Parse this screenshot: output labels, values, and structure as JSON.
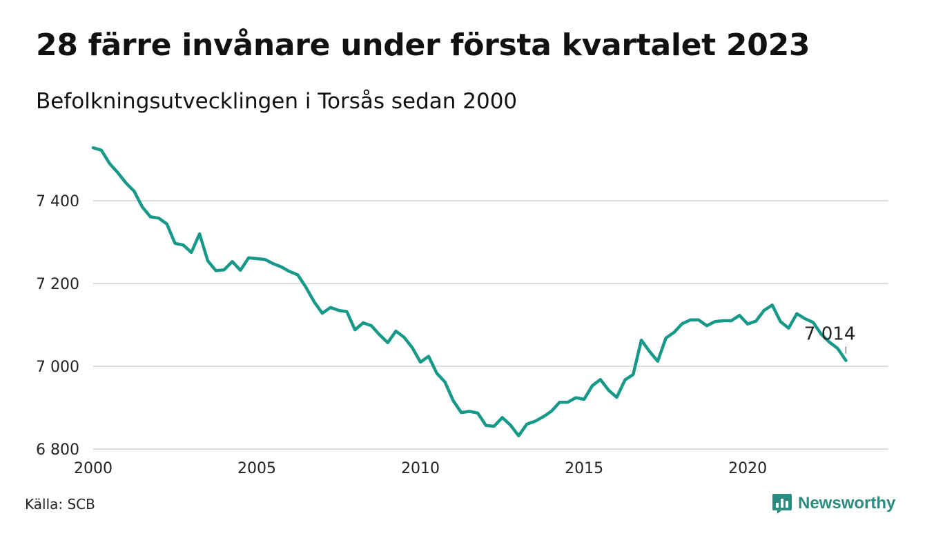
{
  "header": {
    "title": "28 färre invånare under första kvartalet 2023",
    "subtitle": "Befolkningsutvecklingen i Torsås sedan 2000"
  },
  "footer": {
    "source": "Källa: SCB",
    "brand": "Newsworthy"
  },
  "colors": {
    "line": "#17998a",
    "grid": "#dddddd",
    "brand": "#2a8c7e"
  },
  "chart_data": {
    "type": "line",
    "title": "28 färre invånare under första kvartalet 2023",
    "subtitle": "Befolkningsutvecklingen i Torsås sedan 2000",
    "xlabel": "",
    "ylabel": "",
    "xlim": [
      2000,
      2024.3
    ],
    "ylim": [
      6800,
      7540
    ],
    "x_ticks": [
      2000,
      2005,
      2010,
      2015,
      2020
    ],
    "x_tick_labels": [
      "2000",
      "2005",
      "2010",
      "2015",
      "2020"
    ],
    "y_ticks": [
      6800,
      7000,
      7200,
      7400
    ],
    "y_tick_labels": [
      "6 800",
      "7 000",
      "7 200",
      "7 400"
    ],
    "grid": "horizontal",
    "end_label": "7 014",
    "series": [
      {
        "x": [
          2000.0,
          2000.25,
          2000.5,
          2000.75,
          2001.0,
          2001.25,
          2001.5,
          2001.75,
          2002.0,
          2002.25,
          2002.5,
          2002.75,
          2003.0,
          2003.25,
          2003.5,
          2003.75,
          2004.0,
          2004.25,
          2004.5,
          2004.75,
          2005.0,
          2005.25,
          2005.5,
          2005.75,
          2006.0,
          2006.25,
          2006.5,
          2006.75,
          2007.0,
          2007.25,
          2007.5,
          2007.75,
          2008.0,
          2008.25,
          2008.5,
          2008.75,
          2009.0,
          2009.25,
          2009.5,
          2009.75,
          2010.0,
          2010.25,
          2010.5,
          2010.75,
          2011.0,
          2011.25,
          2011.5,
          2011.75,
          2012.0,
          2012.25,
          2012.5,
          2012.75,
          2013.0,
          2013.25,
          2013.5,
          2013.75,
          2014.0,
          2014.25,
          2014.5,
          2014.75,
          2015.0,
          2015.25,
          2015.5,
          2015.75,
          2016.0,
          2016.25,
          2016.5,
          2016.75,
          2017.0,
          2017.25,
          2017.5,
          2017.75,
          2018.0,
          2018.25,
          2018.5,
          2018.75,
          2019.0,
          2019.25,
          2019.5,
          2019.75,
          2020.0,
          2020.25,
          2020.5,
          2020.75,
          2021.0,
          2021.25,
          2021.5,
          2021.75,
          2022.0,
          2022.25,
          2022.5,
          2022.75,
          2023.0
        ],
        "values": [
          7528,
          7522,
          7490,
          7468,
          7443,
          7423,
          7385,
          7361,
          7358,
          7344,
          7297,
          7293,
          7275,
          7320,
          7255,
          7231,
          7233,
          7253,
          7232,
          7262,
          7260,
          7258,
          7248,
          7240,
          7229,
          7221,
          7191,
          7156,
          7128,
          7142,
          7135,
          7132,
          7088,
          7105,
          7098,
          7076,
          7057,
          7085,
          7070,
          7045,
          7010,
          7024,
          6983,
          6962,
          6917,
          6888,
          6891,
          6887,
          6857,
          6855,
          6876,
          6858,
          6832,
          6860,
          6867,
          6878,
          6891,
          6913,
          6913,
          6924,
          6920,
          6953,
          6968,
          6942,
          6925,
          6967,
          6980,
          7063,
          7036,
          7012,
          7068,
          7082,
          7103,
          7112,
          7112,
          7098,
          7108,
          7110,
          7110,
          7123,
          7102,
          7109,
          7135,
          7148,
          7108,
          7092,
          7127,
          7115,
          7106,
          7077,
          7058,
          7043,
          7014
        ]
      }
    ]
  }
}
